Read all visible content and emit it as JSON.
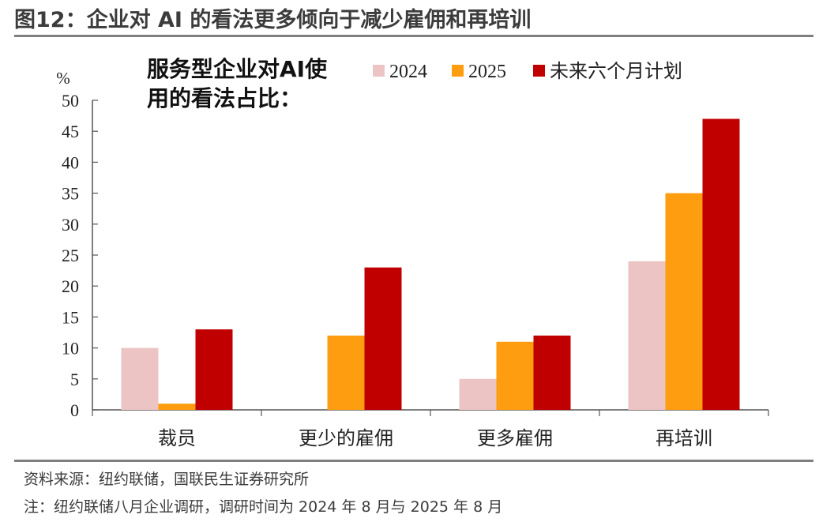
{
  "figure": {
    "title": "图12：企业对 AI 的看法更多倾向于减少雇佣和再培训",
    "source": "资料来源：纽约联储，国联民生证券研究所",
    "note": "注：纽约联储八月企业调研，调研时间为 2024 年 8 月与 2025 年 8 月"
  },
  "chart_data": {
    "type": "bar",
    "title_line1": "服务型企业对AI使",
    "title_line2": "用的看法占比：",
    "ylabel": "%",
    "ylim": [
      0,
      50
    ],
    "yticks": [
      0,
      5,
      10,
      15,
      20,
      25,
      30,
      35,
      40,
      45,
      50
    ],
    "categories": [
      "裁员",
      "更少的雇佣",
      "更多雇佣",
      "再培训"
    ],
    "series": [
      {
        "name": "2024",
        "color": "#ecc4c4",
        "values": [
          10,
          0,
          5,
          24
        ]
      },
      {
        "name": "2025",
        "color": "#fd9d0f",
        "values": [
          1,
          12,
          11,
          35
        ]
      },
      {
        "name": "未来六个月计划",
        "color": "#c00000",
        "values": [
          13,
          23,
          12,
          47
        ]
      }
    ],
    "legend": "top-right",
    "grid": false
  }
}
